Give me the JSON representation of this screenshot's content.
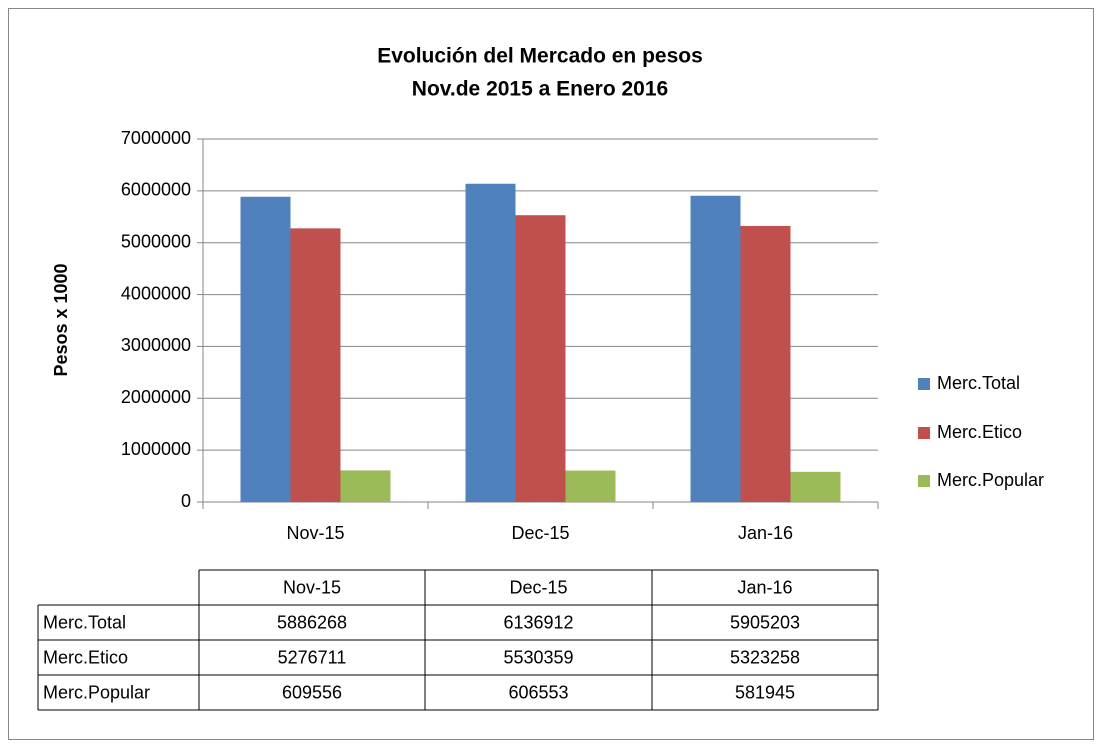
{
  "chart_data": {
    "type": "bar",
    "title": "Evolución del Mercado en pesos",
    "subtitle": "Nov.de 2015 a Enero 2016",
    "ylabel": "Pesos x 1000",
    "categories": [
      "Nov-15",
      "Dec-15",
      "Jan-16"
    ],
    "series": [
      {
        "name": "Merc.Total",
        "color": "#4f81bd",
        "values": [
          5886268,
          6136912,
          5905203
        ]
      },
      {
        "name": "Merc.Etico",
        "color": "#c0504d",
        "values": [
          5276711,
          5530359,
          5323258
        ]
      },
      {
        "name": "Merc.Popular",
        "color": "#9bbb59",
        "values": [
          609556,
          606553,
          581945
        ]
      }
    ],
    "ylim": [
      0,
      7000000
    ],
    "yticks": [
      0,
      1000000,
      2000000,
      3000000,
      4000000,
      5000000,
      6000000,
      7000000
    ],
    "grid": true,
    "legend": "right",
    "data_table": true
  }
}
